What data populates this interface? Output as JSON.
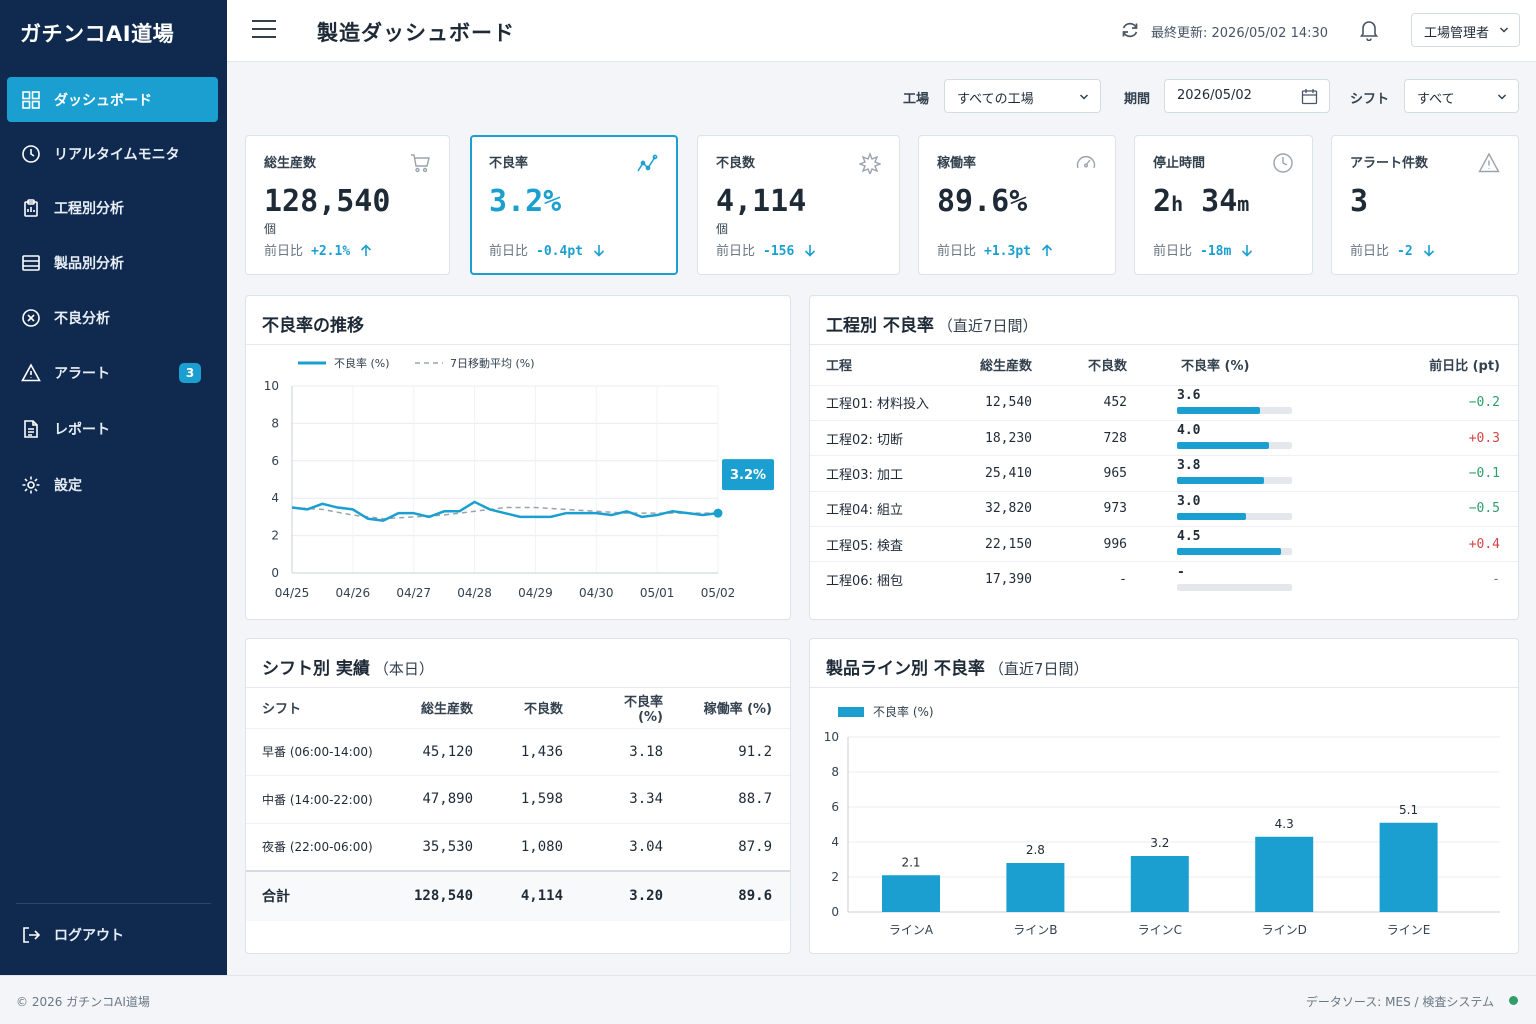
{
  "app": {
    "brand": "ガチンコAI道場"
  },
  "sidebar": {
    "items": [
      {
        "label": "ダッシュボード",
        "icon": "grid-icon",
        "active": true
      },
      {
        "label": "リアルタイムモニタ",
        "icon": "clock-icon"
      },
      {
        "label": "工程別分析",
        "icon": "clipboard-icon"
      },
      {
        "label": "製品別分析",
        "icon": "layers-icon"
      },
      {
        "label": "不良分析",
        "icon": "x-circle-icon"
      },
      {
        "label": "アラート",
        "icon": "alert-triangle-icon",
        "badge": "3"
      },
      {
        "label": "レポート",
        "icon": "document-icon"
      },
      {
        "label": "設定",
        "icon": "gear-icon"
      }
    ],
    "logout_label": "ログアウト"
  },
  "header": {
    "title": "製造ダッシュボード",
    "last_updated": "最終更新: 2026/05/02 14:30",
    "user_menu": "工場管理者"
  },
  "filters": {
    "factory_label": "工場",
    "factory_value": "すべての工場",
    "period_label": "期間",
    "period_value": "2026/05/02",
    "shift_label": "シフト",
    "shift_value": "すべて"
  },
  "kpis": [
    {
      "label": "総生産数",
      "value": "128,540",
      "unit": "個",
      "delta_label": "前日比",
      "delta": "+2.1%",
      "direction": "up",
      "icon": "cart-icon"
    },
    {
      "label": "不良率",
      "value": "3.2%",
      "unit": "",
      "delta_label": "前日比",
      "delta": "-0.4pt",
      "direction": "down",
      "icon": "trend-line-icon",
      "selected": true
    },
    {
      "label": "不良数",
      "value": "4,114",
      "unit": "個",
      "delta_label": "前日比",
      "delta": "-156",
      "direction": "down",
      "icon": "burst-icon"
    },
    {
      "label": "稼働率",
      "value": "89.6%",
      "unit": "",
      "delta_label": "前日比",
      "delta": "+1.3pt",
      "direction": "up",
      "icon": "gauge-icon"
    },
    {
      "label": "停止時間",
      "value_h": "2",
      "h": "h",
      "value_m": "34",
      "m": "m",
      "unit": "",
      "delta_label": "前日比",
      "delta": "-18m",
      "direction": "down",
      "icon": "clock-icon"
    },
    {
      "label": "アラート件数",
      "value": "3",
      "unit": "",
      "delta_label": "前日比",
      "delta": "-2",
      "direction": "down",
      "icon": "warning-icon"
    }
  ],
  "trend_panel": {
    "title": "不良率の推移"
  },
  "process_panel": {
    "title": "工程別 不良率",
    "subtitle": "（直近7日間）",
    "columns": [
      "工程",
      "総生産数",
      "不良数",
      "不良率 (%)",
      "前日比 (pt)"
    ],
    "rows": [
      {
        "name": "工程01: 材料投入",
        "production": "12,540",
        "defects": "452",
        "rate": "3.6",
        "rate_value": 3.6,
        "delta": "−0.2",
        "delta_color": "#2e9e6b"
      },
      {
        "name": "工程02: 切断",
        "production": "18,230",
        "defects": "728",
        "rate": "4.0",
        "rate_value": 4.0,
        "delta": "+0.3",
        "delta_color": "#d64545"
      },
      {
        "name": "工程03: 加工",
        "production": "25,410",
        "defects": "965",
        "rate": "3.8",
        "rate_value": 3.8,
        "delta": "−0.1",
        "delta_color": "#2e9e6b"
      },
      {
        "name": "工程04: 組立",
        "production": "32,820",
        "defects": "973",
        "rate": "3.0",
        "rate_value": 3.0,
        "delta": "−0.5",
        "delta_color": "#2e9e6b"
      },
      {
        "name": "工程05: 検査",
        "production": "22,150",
        "defects": "996",
        "rate": "4.5",
        "rate_value": 4.5,
        "delta": "+0.4",
        "delta_color": "#d64545"
      },
      {
        "name": "工程06: 梱包",
        "production": "17,390",
        "defects": "-",
        "rate": "-",
        "rate_value": 0,
        "delta": "-",
        "delta_color": "#6b7785"
      }
    ]
  },
  "shift_panel": {
    "title": "シフト別 実績",
    "subtitle": "（本日）",
    "columns": [
      "シフト",
      "総生産数",
      "不良数",
      "不良率 (%)",
      "稼働率 (%)"
    ],
    "rows": [
      {
        "name": "早番 (06:00-14:00)",
        "production": "45,120",
        "defects": "1,436",
        "rate": "3.18",
        "uptime": "91.2"
      },
      {
        "name": "中番 (14:00-22:00)",
        "production": "47,890",
        "defects": "1,598",
        "rate": "3.34",
        "uptime": "88.7"
      },
      {
        "name": "夜番 (22:00-06:00)",
        "production": "35,530",
        "defects": "1,080",
        "rate": "3.04",
        "uptime": "87.9"
      }
    ],
    "total": {
      "name": "合計",
      "production": "128,540",
      "defects": "4,114",
      "rate": "3.20",
      "uptime": "89.6"
    }
  },
  "line_panel": {
    "title": "製品ライン別 不良率",
    "subtitle": "（直近7日間）"
  },
  "chart_data": [
    {
      "type": "line",
      "title": "不良率の推移",
      "x_ticks": [
        "04/25",
        "04/26",
        "04/27",
        "04/28",
        "04/29",
        "04/30",
        "05/01",
        "05/02"
      ],
      "ylim": [
        0,
        10
      ],
      "y_ticks": [
        0,
        2,
        4,
        6,
        8,
        10
      ],
      "grid": true,
      "legend_position": "top-left",
      "series": [
        {
          "name": "不良率 (%)",
          "color": "#1a9fd0",
          "style": "solid",
          "x": [
            0,
            0.25,
            0.5,
            0.75,
            1.0,
            1.25,
            1.5,
            1.75,
            2.0,
            2.25,
            2.5,
            2.75,
            3.0,
            3.25,
            3.5,
            3.75,
            4.0,
            4.25,
            4.5,
            4.75,
            5.0,
            5.25,
            5.5,
            5.75,
            6.0,
            6.25,
            6.5,
            6.75,
            7.0
          ],
          "values": [
            3.5,
            3.4,
            3.7,
            3.5,
            3.4,
            2.9,
            2.8,
            3.2,
            3.2,
            3.0,
            3.3,
            3.3,
            3.8,
            3.4,
            3.2,
            3.0,
            3.0,
            3.0,
            3.2,
            3.2,
            3.2,
            3.1,
            3.3,
            3.0,
            3.1,
            3.3,
            3.2,
            3.1,
            3.2
          ]
        },
        {
          "name": "7日移動平均 (%)",
          "color": "#9aa3ad",
          "style": "dashed",
          "x": [
            0,
            0.5,
            1,
            1.5,
            2,
            2.5,
            3,
            3.5,
            4,
            4.5,
            5,
            5.5,
            6,
            6.5,
            7
          ],
          "values": [
            3.5,
            3.4,
            3.1,
            2.9,
            3.0,
            3.1,
            3.3,
            3.5,
            3.5,
            3.4,
            3.3,
            3.2,
            3.2,
            3.2,
            3.2
          ]
        }
      ],
      "callout": "3.2%"
    },
    {
      "type": "bar",
      "title": "製品ライン別 不良率",
      "categories": [
        "ラインA",
        "ラインB",
        "ラインC",
        "ラインD",
        "ラインE"
      ],
      "series": [
        {
          "name": "不良率 (%)",
          "color": "#1a9fd0",
          "values": [
            2.1,
            2.8,
            3.2,
            4.3,
            5.1
          ]
        }
      ],
      "data_labels": [
        "2.1",
        "2.8",
        "3.2",
        "4.3",
        "5.1"
      ],
      "ylim": [
        0,
        10
      ],
      "y_ticks": [
        0,
        2,
        4,
        6,
        8,
        10
      ],
      "grid": true,
      "legend_position": "top-left"
    }
  ],
  "footer": {
    "copyright": "© 2026 ガチンコAI道場",
    "datasource": "データソース: MES / 検査システム"
  }
}
